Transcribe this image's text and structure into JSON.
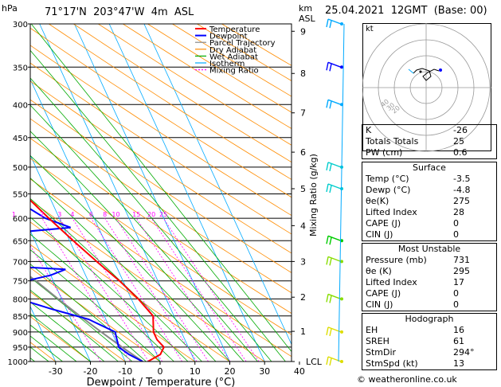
{
  "header": {
    "title": "71°17'N  203°47'W  4m  ASL",
    "hpa_label": "hPa",
    "km_label": "km",
    "asl_label": "ASL",
    "date": "25.04.2021  12GMT  (Base: 00)"
  },
  "chart_data": {
    "type": "line",
    "xlabel": "Dewpoint  /  Temperature  (°C)",
    "ylabel_right": "Mixing Ratio  (g/kg)",
    "x_ticks": [
      -30,
      -20,
      -10,
      0,
      10,
      20,
      30,
      40
    ],
    "xlim": [
      -35,
      40
    ],
    "pressure_levels": [
      300,
      350,
      400,
      450,
      500,
      550,
      600,
      650,
      700,
      750,
      800,
      850,
      900,
      950,
      1000
    ],
    "km_ticks": [
      {
        "p": 308,
        "label": "9"
      },
      {
        "p": 358,
        "label": "8"
      },
      {
        "p": 412,
        "label": "7"
      },
      {
        "p": 474,
        "label": "6"
      },
      {
        "p": 540,
        "label": "5"
      },
      {
        "p": 616,
        "label": "4"
      },
      {
        "p": 700,
        "label": "3"
      },
      {
        "p": 795,
        "label": "2"
      },
      {
        "p": 898,
        "label": "1"
      },
      {
        "p": 1000,
        "label": "LCL"
      }
    ],
    "mixing_ratio_labels": [
      "1",
      "2",
      "3",
      "4",
      "6",
      "8",
      "10",
      "15",
      "20",
      "25"
    ],
    "mixing_ratio_values": [
      1,
      2,
      3,
      4,
      6,
      8,
      10,
      15,
      20,
      25
    ],
    "legend": [
      "Temperature",
      "Dewpoint",
      "Parcel Trajectory",
      "Dry Adiabat",
      "Wet Adiabat",
      "Isotherm",
      "Mixing Ratio"
    ],
    "legend_colors": [
      "#ff0000",
      "#0000ff",
      "#888888",
      "#ff8c00",
      "#00aa00",
      "#00aaff",
      "#ff00ff"
    ],
    "temperature": [
      {
        "p": 1000,
        "t": -3.5
      },
      {
        "p": 975,
        "t": 1
      },
      {
        "p": 950,
        "t": 3
      },
      {
        "p": 925,
        "t": 2
      },
      {
        "p": 900,
        "t": 2
      },
      {
        "p": 850,
        "t": 4
      },
      {
        "p": 800,
        "t": 2
      },
      {
        "p": 750,
        "t": -1
      },
      {
        "p": 700,
        "t": -5
      },
      {
        "p": 650,
        "t": -9
      },
      {
        "p": 600,
        "t": -13
      },
      {
        "p": 550,
        "t": -17
      },
      {
        "p": 500,
        "t": -22
      },
      {
        "p": 450,
        "t": -28
      },
      {
        "p": 400,
        "t": -35
      },
      {
        "p": 350,
        "t": -43
      },
      {
        "p": 320,
        "t": -45
      },
      {
        "p": 300,
        "t": -50
      }
    ],
    "dewpoint": [
      {
        "p": 1000,
        "t": -5
      },
      {
        "p": 975,
        "t": -8
      },
      {
        "p": 950,
        "t": -10
      },
      {
        "p": 900,
        "t": -9
      },
      {
        "p": 860,
        "t": -15
      },
      {
        "p": 830,
        "t": -24
      },
      {
        "p": 790,
        "t": -35
      },
      {
        "p": 760,
        "t": -33
      },
      {
        "p": 735,
        "t": -20
      },
      {
        "p": 720,
        "t": -15
      },
      {
        "p": 705,
        "t": -45
      },
      {
        "p": 680,
        "t": -26
      },
      {
        "p": 640,
        "t": -37
      },
      {
        "p": 620,
        "t": -8
      },
      {
        "p": 600,
        "t": -14
      },
      {
        "p": 575,
        "t": -18
      },
      {
        "p": 555,
        "t": -32
      },
      {
        "p": 540,
        "t": -43
      },
      {
        "p": 500,
        "t": -40
      },
      {
        "p": 450,
        "t": -41
      },
      {
        "p": 400,
        "t": -47
      },
      {
        "p": 350,
        "t": -52
      },
      {
        "p": 320,
        "t": -53
      },
      {
        "p": 300,
        "t": -52
      }
    ],
    "parcel": [
      {
        "p": 1000,
        "t": -5
      },
      {
        "p": 950,
        "t": -9
      },
      {
        "p": 900,
        "t": -13
      },
      {
        "p": 850,
        "t": -17
      },
      {
        "p": 800,
        "t": -21
      },
      {
        "p": 750,
        "t": -25
      },
      {
        "p": 700,
        "t": -30
      },
      {
        "p": 650,
        "t": -34
      },
      {
        "p": 600,
        "t": -39
      },
      {
        "p": 550,
        "t": -44
      },
      {
        "p": 500,
        "t": -50
      },
      {
        "p": 450,
        "t": -55
      },
      {
        "p": 400,
        "t": -61
      },
      {
        "p": 350,
        "t": -68
      },
      {
        "p": 300,
        "t": -75
      }
    ]
  },
  "hodograph": {
    "label": "kt",
    "ring_labels": [
      "20",
      "30",
      "40"
    ]
  },
  "indices": {
    "k_label": "K",
    "k_value": "-26",
    "tt_label": "Totals Totals",
    "tt_value": "25",
    "pw_label": "PW (cm)",
    "pw_value": "0.6"
  },
  "surface": {
    "heading": "Surface",
    "rows": [
      {
        "label": "Temp (°C)",
        "value": "-3.5"
      },
      {
        "label": "Dewp (°C)",
        "value": "-4.8"
      },
      {
        "label": "θe(K)",
        "value": "275"
      },
      {
        "label": "Lifted Index",
        "value": "28"
      },
      {
        "label": "CAPE (J)",
        "value": "0"
      },
      {
        "label": "CIN (J)",
        "value": "0"
      }
    ]
  },
  "most_unstable": {
    "heading": "Most Unstable",
    "rows": [
      {
        "label": "Pressure (mb)",
        "value": "731"
      },
      {
        "label": "θe (K)",
        "value": "295"
      },
      {
        "label": "Lifted Index",
        "value": "17"
      },
      {
        "label": "CAPE (J)",
        "value": "0"
      },
      {
        "label": "CIN (J)",
        "value": "0"
      }
    ]
  },
  "hodo_table": {
    "heading": "Hodograph",
    "rows": [
      {
        "label": "EH",
        "value": "16"
      },
      {
        "label": "SREH",
        "value": "61"
      },
      {
        "label": "StmDir",
        "value": "294°"
      },
      {
        "label": "StmSpd (kt)",
        "value": "13"
      }
    ]
  },
  "footer": {
    "copyright": "© weatheronline.co.uk"
  }
}
